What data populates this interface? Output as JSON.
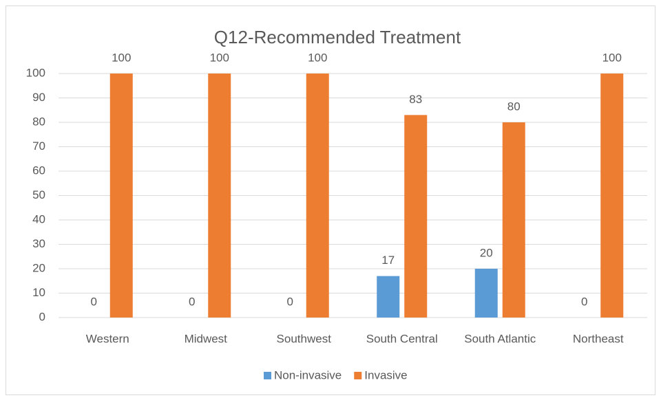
{
  "chart_data": {
    "type": "bar",
    "title": "Q12-Recommended Treatment",
    "categories": [
      "Western",
      "Midwest",
      "Southwest",
      "South Central",
      "South Atlantic",
      "Northeast"
    ],
    "series": [
      {
        "name": "Non-invasive",
        "color": "#5b9bd5",
        "values": [
          0,
          0,
          0,
          17,
          20,
          0
        ]
      },
      {
        "name": "Invasive",
        "color": "#ed7d31",
        "values": [
          100,
          100,
          100,
          83,
          80,
          100
        ]
      }
    ],
    "ylim": [
      0,
      100
    ],
    "yticks": [
      0,
      10,
      20,
      30,
      40,
      50,
      60,
      70,
      80,
      90,
      100
    ],
    "grid": true,
    "legend": "bottom"
  }
}
